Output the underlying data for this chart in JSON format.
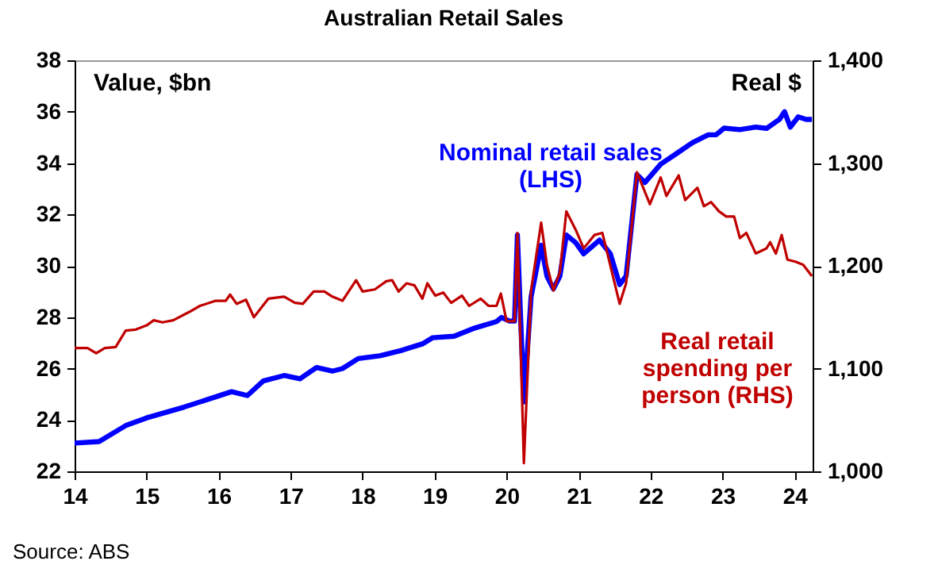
{
  "chart_data": {
    "type": "line",
    "title": "Australian Retail Sales",
    "ylabel": "Value, $bn",
    "y2label": "Real $",
    "annotations": [
      "Source: ABS"
    ],
    "xlim": [
      14,
      24.25
    ],
    "xticks": [
      14,
      15,
      16,
      17,
      18,
      19,
      20,
      21,
      22,
      23,
      24
    ],
    "ylim": [
      22,
      38
    ],
    "yticks": [
      22,
      24,
      26,
      28,
      30,
      32,
      34,
      36,
      38
    ],
    "y2lim": [
      1000,
      1400
    ],
    "y2ticks": [
      {
        "value": 1000,
        "label": "1,000"
      },
      {
        "value": 1100,
        "label": "1,100"
      },
      {
        "value": 1200,
        "label": "1,200"
      },
      {
        "value": 1300,
        "label": "1,300"
      },
      {
        "value": 1400,
        "label": "1,400"
      }
    ],
    "grid": false,
    "series": [
      {
        "name": "Nominal retail sales\n(LHS)",
        "color": "#0000ff",
        "x": [
          14.0,
          14.34,
          14.71,
          15.0,
          15.52,
          15.96,
          16.18,
          16.4,
          16.62,
          16.91,
          17.13,
          17.36,
          17.58,
          17.72,
          17.94,
          18.24,
          18.53,
          18.83,
          18.97,
          19.27,
          19.56,
          19.86,
          19.93,
          20.04,
          20.11,
          20.15,
          20.24,
          20.34,
          20.48,
          20.56,
          20.65,
          20.74,
          20.83,
          20.96,
          21.07,
          21.29,
          21.44,
          21.57,
          21.66,
          21.81,
          21.92,
          22.14,
          22.36,
          22.58,
          22.8,
          22.91,
          23.02,
          23.24,
          23.46,
          23.61,
          23.79,
          23.86,
          23.94,
          24.05,
          24.16,
          24.24
        ],
        "values": [
          23.1,
          23.16,
          23.78,
          24.08,
          24.5,
          24.9,
          25.1,
          24.95,
          25.52,
          25.73,
          25.6,
          26.04,
          25.9,
          26.0,
          26.39,
          26.5,
          26.7,
          26.96,
          27.2,
          27.26,
          27.58,
          27.83,
          27.99,
          27.85,
          27.85,
          31.2,
          24.7,
          28.8,
          30.8,
          29.6,
          29.1,
          29.6,
          31.2,
          30.9,
          30.47,
          31.0,
          30.47,
          29.27,
          29.6,
          33.55,
          33.24,
          33.96,
          34.37,
          34.79,
          35.1,
          35.1,
          35.36,
          35.3,
          35.4,
          35.35,
          35.7,
          36.0,
          35.4,
          35.8,
          35.7,
          35.7
        ]
      },
      {
        "name": "Real retail\nspending per\nperson (RHS)",
        "color": "#c00000",
        "axis": "y2",
        "x": [
          14.0,
          14.18,
          14.3,
          14.42,
          14.57,
          14.71,
          14.85,
          15.0,
          15.1,
          15.22,
          15.37,
          15.59,
          15.74,
          15.96,
          16.1,
          16.16,
          16.25,
          16.38,
          16.49,
          16.69,
          16.91,
          17.06,
          17.17,
          17.32,
          17.47,
          17.58,
          17.72,
          17.91,
          18.0,
          18.17,
          18.33,
          18.41,
          18.5,
          18.61,
          18.72,
          18.83,
          18.9,
          19.01,
          19.12,
          19.23,
          19.38,
          19.48,
          19.64,
          19.75,
          19.86,
          19.92,
          20.0,
          20.11,
          20.15,
          20.24,
          20.34,
          20.48,
          20.56,
          20.65,
          20.74,
          20.83,
          20.96,
          21.07,
          21.22,
          21.33,
          21.57,
          21.66,
          21.81,
          21.99,
          22.14,
          22.22,
          22.39,
          22.48,
          22.65,
          22.74,
          22.84,
          22.95,
          23.05,
          23.16,
          23.24,
          23.33,
          23.46,
          23.61,
          23.66,
          23.74,
          23.82,
          23.9,
          24.01,
          24.12,
          24.24
        ],
        "values": [
          1120,
          1120,
          1115,
          1120,
          1121,
          1137,
          1138,
          1142,
          1147,
          1145,
          1147,
          1155,
          1161,
          1166,
          1166,
          1172,
          1163,
          1167,
          1150,
          1168,
          1170,
          1164,
          1163,
          1175,
          1175,
          1170,
          1166,
          1186,
          1175,
          1177,
          1185,
          1186,
          1175,
          1183,
          1181,
          1168,
          1183,
          1171,
          1174,
          1164,
          1171,
          1161,
          1168,
          1161,
          1161,
          1173,
          1146,
          1146,
          1232,
          1008,
          1176,
          1242,
          1201,
          1176,
          1194,
          1253,
          1235,
          1217,
          1230,
          1232,
          1163,
          1183,
          1291,
          1260,
          1286,
          1268,
          1288,
          1264,
          1276,
          1258,
          1262,
          1253,
          1248,
          1248,
          1227,
          1232,
          1212,
          1217,
          1223,
          1212,
          1230,
          1206,
          1204,
          1201,
          1190
        ]
      }
    ]
  }
}
